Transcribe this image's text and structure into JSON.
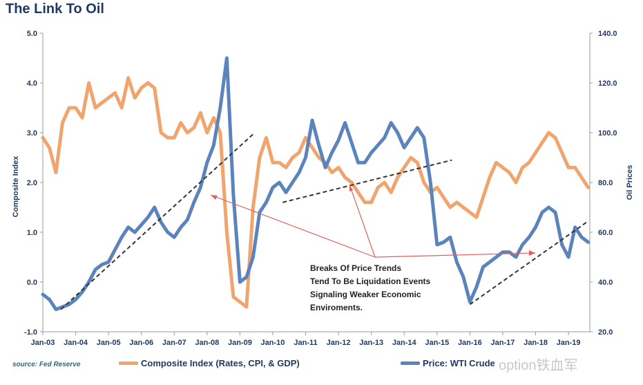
{
  "title": "The Link To Oil",
  "source": "source: Fed Reserve",
  "watermark": "option铁血军",
  "annotation_lines": [
    "Breaks Of Price Trends",
    "Tend To Be Liquidation Events",
    "Signaling Weaker Economic",
    "Enviroments."
  ],
  "colors": {
    "composite": "#f0a46e",
    "oil": "#5b84bc",
    "trend": "#333333",
    "arrow": "#e06060",
    "text": "#1f3864"
  },
  "chart_data": {
    "type": "line",
    "title": "The Link To Oil",
    "ylabel_left": "Composite Index",
    "ylabel_right": "Oil Prices",
    "ylim_left": [
      -1.0,
      5.0
    ],
    "ylim_right": [
      20.0,
      140.0
    ],
    "yticks_left": [
      "5.0",
      "4.0",
      "3.0",
      "2.0",
      "1.0",
      "0.0",
      "-1.0"
    ],
    "yticks_right": [
      "140.0",
      "120.0",
      "100.0",
      "80.0",
      "60.0",
      "40.0",
      "20.0"
    ],
    "x_tick_labels": [
      "Jan-03",
      "Jan-04",
      "Jan-05",
      "Jan-06",
      "Jan-07",
      "Jan-08",
      "Jan-09",
      "Jan-10",
      "Jan-11",
      "Jan-12",
      "Jan-13",
      "Jan-14",
      "Jan-15",
      "Jan-16",
      "Jan-17",
      "Jan-18",
      "Jan-19"
    ],
    "grid": false,
    "series": [
      {
        "name": "Composite Index (Rates, CPI, & GDP)",
        "axis": "left",
        "x": [
          2003.0,
          2003.2,
          2003.4,
          2003.6,
          2003.8,
          2004.0,
          2004.2,
          2004.4,
          2004.6,
          2004.8,
          2005.0,
          2005.2,
          2005.4,
          2005.6,
          2005.8,
          2006.0,
          2006.2,
          2006.4,
          2006.6,
          2006.8,
          2007.0,
          2007.2,
          2007.4,
          2007.6,
          2007.8,
          2008.0,
          2008.2,
          2008.4,
          2008.6,
          2008.8,
          2009.0,
          2009.2,
          2009.4,
          2009.6,
          2009.8,
          2010.0,
          2010.2,
          2010.4,
          2010.6,
          2010.8,
          2011.0,
          2011.2,
          2011.4,
          2011.6,
          2011.8,
          2012.0,
          2012.2,
          2012.4,
          2012.6,
          2012.8,
          2013.0,
          2013.2,
          2013.4,
          2013.6,
          2013.8,
          2014.0,
          2014.2,
          2014.4,
          2014.6,
          2014.8,
          2015.0,
          2015.2,
          2015.4,
          2015.6,
          2015.8,
          2016.0,
          2016.2,
          2016.4,
          2016.6,
          2016.8,
          2017.0,
          2017.2,
          2017.4,
          2017.6,
          2017.8,
          2018.0,
          2018.2,
          2018.4,
          2018.6,
          2018.8,
          2019.0,
          2019.2,
          2019.4,
          2019.6
        ],
        "values": [
          2.9,
          2.7,
          2.2,
          3.2,
          3.5,
          3.5,
          3.3,
          4.0,
          3.5,
          3.6,
          3.7,
          3.8,
          3.5,
          4.1,
          3.7,
          3.9,
          4.0,
          3.9,
          3.0,
          2.9,
          2.9,
          3.2,
          3.0,
          3.1,
          3.4,
          3.0,
          3.3,
          3.0,
          1.0,
          -0.3,
          -0.4,
          -0.5,
          1.5,
          2.5,
          2.9,
          2.4,
          2.4,
          2.3,
          2.5,
          2.6,
          2.9,
          2.7,
          2.5,
          2.4,
          2.2,
          2.3,
          2.1,
          2.0,
          1.8,
          1.6,
          1.6,
          1.9,
          2.0,
          1.8,
          2.1,
          2.3,
          2.5,
          2.4,
          2.0,
          1.8,
          1.9,
          1.7,
          1.5,
          1.6,
          1.5,
          1.4,
          1.3,
          1.7,
          2.1,
          2.4,
          2.3,
          2.2,
          2.0,
          2.3,
          2.4,
          2.6,
          2.8,
          3.0,
          2.9,
          2.6,
          2.3,
          2.3,
          2.1,
          1.9
        ]
      },
      {
        "name": "Price: WTI Crude",
        "axis": "right",
        "x": [
          2003.0,
          2003.2,
          2003.4,
          2003.6,
          2003.8,
          2004.0,
          2004.2,
          2004.4,
          2004.6,
          2004.8,
          2005.0,
          2005.2,
          2005.4,
          2005.6,
          2005.8,
          2006.0,
          2006.2,
          2006.4,
          2006.6,
          2006.8,
          2007.0,
          2007.2,
          2007.4,
          2007.6,
          2007.8,
          2008.0,
          2008.2,
          2008.4,
          2008.6,
          2008.8,
          2009.0,
          2009.2,
          2009.4,
          2009.6,
          2009.8,
          2010.0,
          2010.2,
          2010.4,
          2010.6,
          2010.8,
          2011.0,
          2011.2,
          2011.4,
          2011.6,
          2011.8,
          2012.0,
          2012.2,
          2012.4,
          2012.6,
          2012.8,
          2013.0,
          2013.2,
          2013.4,
          2013.6,
          2013.8,
          2014.0,
          2014.2,
          2014.4,
          2014.6,
          2014.8,
          2015.0,
          2015.2,
          2015.4,
          2015.6,
          2015.8,
          2016.0,
          2016.2,
          2016.4,
          2016.6,
          2016.8,
          2017.0,
          2017.2,
          2017.4,
          2017.6,
          2017.8,
          2018.0,
          2018.2,
          2018.4,
          2018.6,
          2018.8,
          2019.0,
          2019.2,
          2019.4,
          2019.6
        ],
        "values": [
          35,
          33,
          29,
          30,
          31,
          33,
          36,
          40,
          45,
          47,
          48,
          53,
          58,
          62,
          60,
          63,
          66,
          70,
          64,
          60,
          58,
          62,
          65,
          72,
          78,
          88,
          95,
          110,
          130,
          75,
          40,
          42,
          50,
          68,
          72,
          78,
          80,
          76,
          80,
          84,
          90,
          105,
          95,
          86,
          92,
          97,
          104,
          96,
          88,
          88,
          92,
          95,
          98,
          104,
          100,
          94,
          98,
          102,
          98,
          80,
          55,
          56,
          58,
          48,
          42,
          32,
          38,
          46,
          48,
          50,
          52,
          52,
          50,
          55,
          58,
          62,
          68,
          70,
          68,
          55,
          50,
          62,
          58,
          56
        ]
      }
    ],
    "trend_lines_right_axis": [
      {
        "x": [
          2003.55,
          2009.45
        ],
        "y": [
          29,
          100
        ]
      },
      {
        "x": [
          2010.3,
          2015.45
        ],
        "y": [
          72,
          89
        ]
      },
      {
        "x": [
          2016.0,
          2019.55
        ],
        "y": [
          31,
          64
        ]
      }
    ]
  },
  "legend": {
    "composite_label": "Composite Index (Rates, CPI, & GDP)",
    "oil_label": "Price: WTI Crude"
  }
}
